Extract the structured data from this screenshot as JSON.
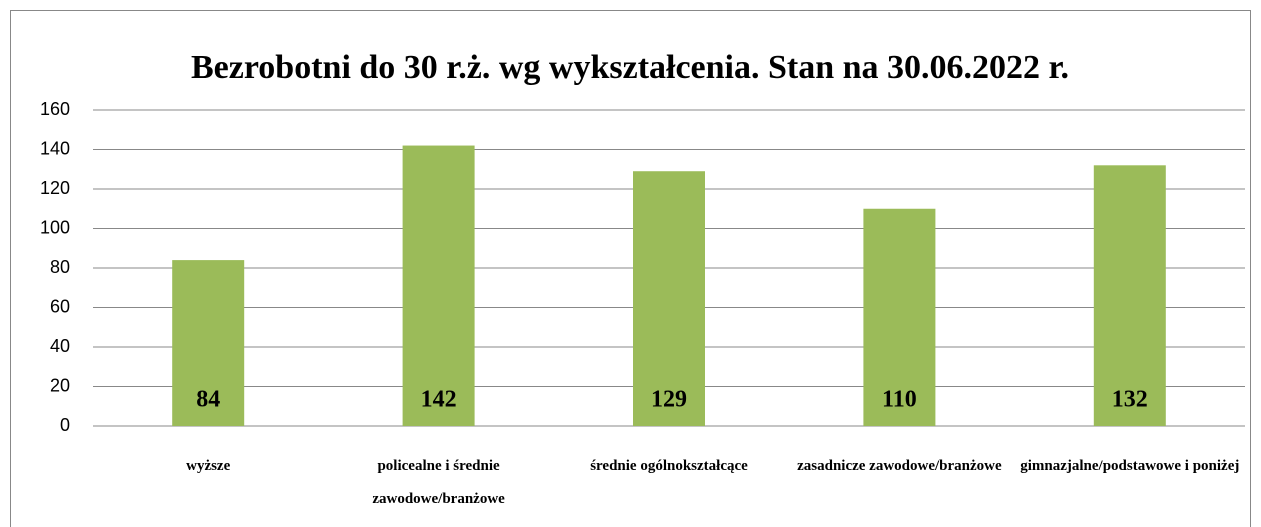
{
  "chart_data": {
    "type": "bar",
    "title": "Bezrobotni do 30 r.ż. wg wykształcenia. Stan na 30.06.2022 r.",
    "categories": [
      "wyższe",
      "policealne i średnie zawodowe/branżowe",
      "średnie ogólnokształcące",
      "zasadnicze zawodowe/branżowe",
      "gimnazjalne/podstawowe i poniżej"
    ],
    "values": [
      84,
      142,
      129,
      110,
      132
    ],
    "color": "#9bbb59",
    "ylim": [
      0,
      160
    ],
    "yticks": [
      0,
      20,
      40,
      60,
      80,
      100,
      120,
      140,
      160
    ],
    "grid": true
  }
}
